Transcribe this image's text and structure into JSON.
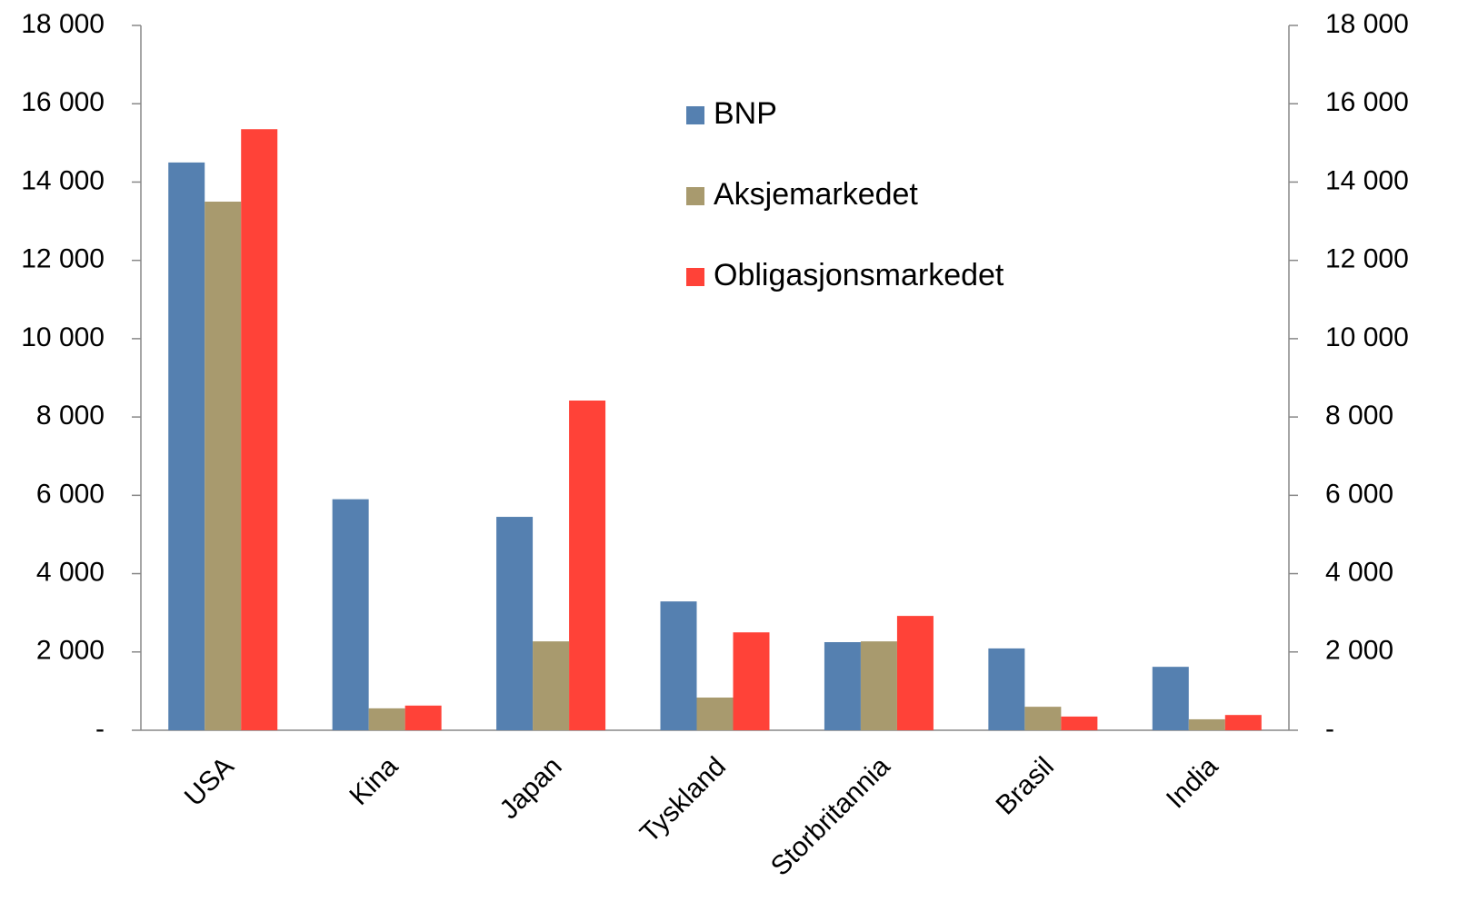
{
  "chart_data": {
    "type": "bar",
    "categories": [
      "USA",
      "Kina",
      "Japan",
      "Tyskland",
      "Storbritannia",
      "Brasil",
      "India"
    ],
    "series": [
      {
        "name": "BNP",
        "color": "#5580b0",
        "values": [
          14500,
          5900,
          5450,
          3290,
          2250,
          2090,
          1620
        ]
      },
      {
        "name": "Aksjemarkedet",
        "color": "#a89a6e",
        "values": [
          13500,
          560,
          2270,
          835,
          2270,
          600,
          280
        ]
      },
      {
        "name": "Obligasjonsmarkedet",
        "color": "#ff4238",
        "values": [
          15350,
          630,
          8420,
          2500,
          2920,
          350,
          390
        ]
      }
    ],
    "ylim": [
      0,
      18000
    ],
    "yticks": [
      {
        "value": 0,
        "label": "-"
      },
      {
        "value": 2000,
        "label": "2 000"
      },
      {
        "value": 4000,
        "label": "4 000"
      },
      {
        "value": 6000,
        "label": "6 000"
      },
      {
        "value": 8000,
        "label": "8 000"
      },
      {
        "value": 10000,
        "label": "10 000"
      },
      {
        "value": 12000,
        "label": "12 000"
      },
      {
        "value": 14000,
        "label": "14 000"
      },
      {
        "value": 16000,
        "label": "16 000"
      },
      {
        "value": 18000,
        "label": "18 000"
      }
    ],
    "y2lim": [
      0,
      18000
    ],
    "y2ticks": [
      {
        "value": 0,
        "label": "-"
      },
      {
        "value": 2000,
        "label": "2 000"
      },
      {
        "value": 4000,
        "label": "4 000"
      },
      {
        "value": 6000,
        "label": "6 000"
      },
      {
        "value": 8000,
        "label": "8 000"
      },
      {
        "value": 10000,
        "label": "10 000"
      },
      {
        "value": 12000,
        "label": "12 000"
      },
      {
        "value": 14000,
        "label": "14 000"
      },
      {
        "value": 16000,
        "label": "16 000"
      },
      {
        "value": 18000,
        "label": "18 000"
      }
    ],
    "legend": "top-center"
  }
}
